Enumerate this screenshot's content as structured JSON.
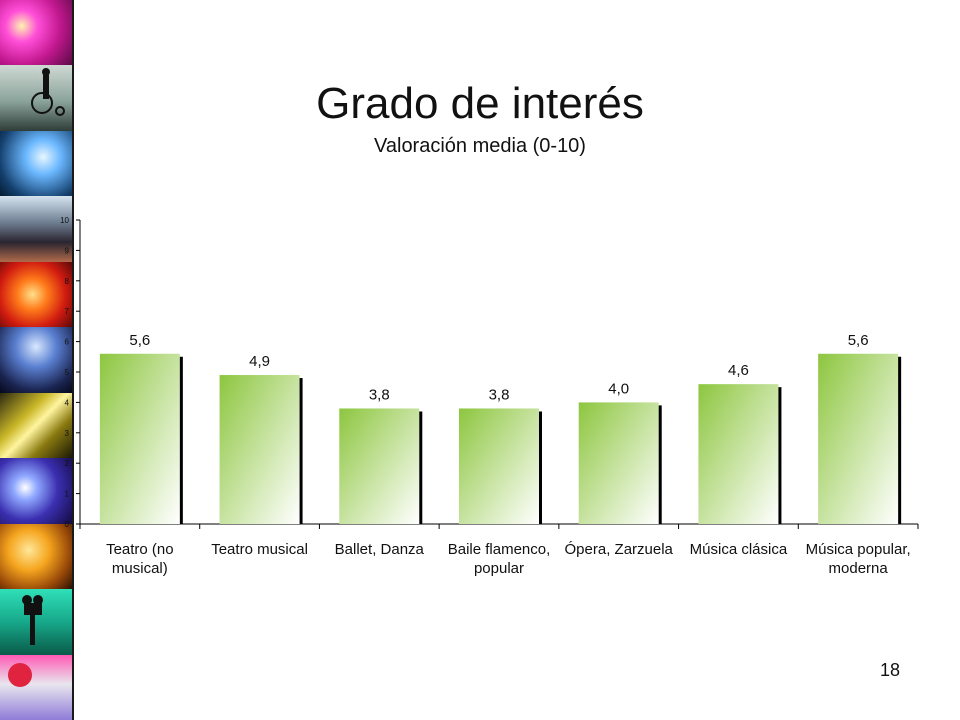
{
  "slide": {
    "title": "Grado de interés",
    "subtitle": "Valoración media (0-10)",
    "page_number": "18"
  },
  "colors": {
    "bar_top": "#8dc63f",
    "bar_bottom": "#ffffff",
    "bar_shadow": "#000000",
    "axis": "#000000",
    "text": "#111111"
  },
  "chart_data": {
    "type": "bar",
    "categories": [
      "Teatro (no musical)",
      "Teatro musical",
      "Ballet, Danza",
      "Baile flamenco, popular",
      "Ópera, Zarzuela",
      "Música clásica",
      "Música popular, moderna"
    ],
    "category_label_lines": [
      [
        "Teatro (no",
        "musical)"
      ],
      [
        "Teatro musical"
      ],
      [
        "Ballet, Danza"
      ],
      [
        "Baile flamenco,",
        "popular"
      ],
      [
        "Ópera, Zarzuela"
      ],
      [
        "Música clásica"
      ],
      [
        "Música popular,",
        "moderna"
      ]
    ],
    "values": [
      5.6,
      4.9,
      3.8,
      3.8,
      4.0,
      4.6,
      5.6
    ],
    "value_labels": [
      "5,6",
      "4,9",
      "3,8",
      "3,8",
      "4,0",
      "4,6",
      "5,6"
    ],
    "ylim": [
      0,
      10
    ],
    "yticks": [
      "0",
      "1",
      "2",
      "3",
      "4",
      "5",
      "6",
      "7",
      "8",
      "9",
      "10"
    ],
    "title": "Grado de interés",
    "subtitle": "Valoración media (0-10)",
    "xlabel": "",
    "ylabel": "",
    "grid": false,
    "legend": "none"
  },
  "decor": {
    "photo_strip_tiles": [
      "magenta-stage",
      "cyclist",
      "blue-concert",
      "crowd",
      "red-stage",
      "band-silhouette",
      "saxophone",
      "blue-lights",
      "guitarist",
      "film-camera",
      "dancer"
    ]
  }
}
